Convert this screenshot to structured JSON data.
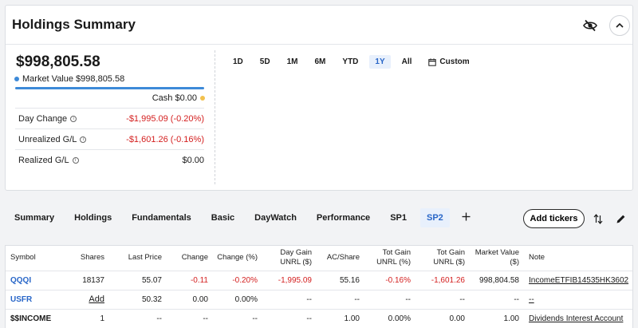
{
  "header": {
    "title": "Holdings Summary"
  },
  "summary": {
    "total_value": "$998,805.58",
    "market_value_label": "Market Value $998,805.58",
    "cash_label": "Cash $0.00",
    "market_value_fraction": 1.0,
    "colors": {
      "market_value": "#3d8ad8",
      "cash": "#f2c14e",
      "negative": "#d42020",
      "accent": "#2866c8"
    },
    "metrics": [
      {
        "label": "Day Change",
        "value": "-$1,995.09 (-0.20%)",
        "negative": true
      },
      {
        "label": "Unrealized G/L",
        "value": "-$1,601.26 (-0.16%)",
        "negative": true
      },
      {
        "label": "Realized G/L",
        "value": "$0.00",
        "negative": false
      }
    ]
  },
  "ranges": {
    "items": [
      "1D",
      "5D",
      "1M",
      "6M",
      "YTD",
      "1Y",
      "All"
    ],
    "active": "1Y",
    "custom_label": "Custom"
  },
  "tabs": {
    "items": [
      "Summary",
      "Holdings",
      "Fundamentals",
      "Basic",
      "DayWatch",
      "Performance",
      "SP1",
      "SP2"
    ],
    "active": "SP2",
    "add_tickers_label": "Add tickers"
  },
  "table": {
    "headers": [
      "Symbol",
      "Shares",
      "Last Price",
      "Change",
      "Change (%)",
      "Day Gain UNRL ($)",
      "AC/Share",
      "Tot Gain UNRL (%)",
      "Tot Gain UNRL ($)",
      "Market Value ($)",
      "Note"
    ],
    "rows": [
      {
        "symbol": "QQQI",
        "shares": "18137",
        "last_price": "55.07",
        "change": "-0.11",
        "change_pct": "-0.20%",
        "day_gain": "-1,995.09",
        "ac_share": "55.16",
        "tot_gain_pct": "-0.16%",
        "tot_gain": "-1,601.26",
        "market_value": "998,804.58",
        "note": "IncomeETFIB14535HK3602"
      },
      {
        "symbol": "USFR",
        "shares": "Add",
        "last_price": "50.32",
        "change": "0.00",
        "change_pct": "0.00%",
        "day_gain": "--",
        "ac_share": "--",
        "tot_gain_pct": "--",
        "tot_gain": "--",
        "market_value": "--",
        "note": "--"
      },
      {
        "symbol": "$$INCOME",
        "shares": "1",
        "last_price": "--",
        "change": "--",
        "change_pct": "--",
        "day_gain": "--",
        "ac_share": "1.00",
        "tot_gain_pct": "0.00%",
        "tot_gain": "0.00",
        "market_value": "1.00",
        "note": "Dividends Interest Account"
      }
    ]
  }
}
